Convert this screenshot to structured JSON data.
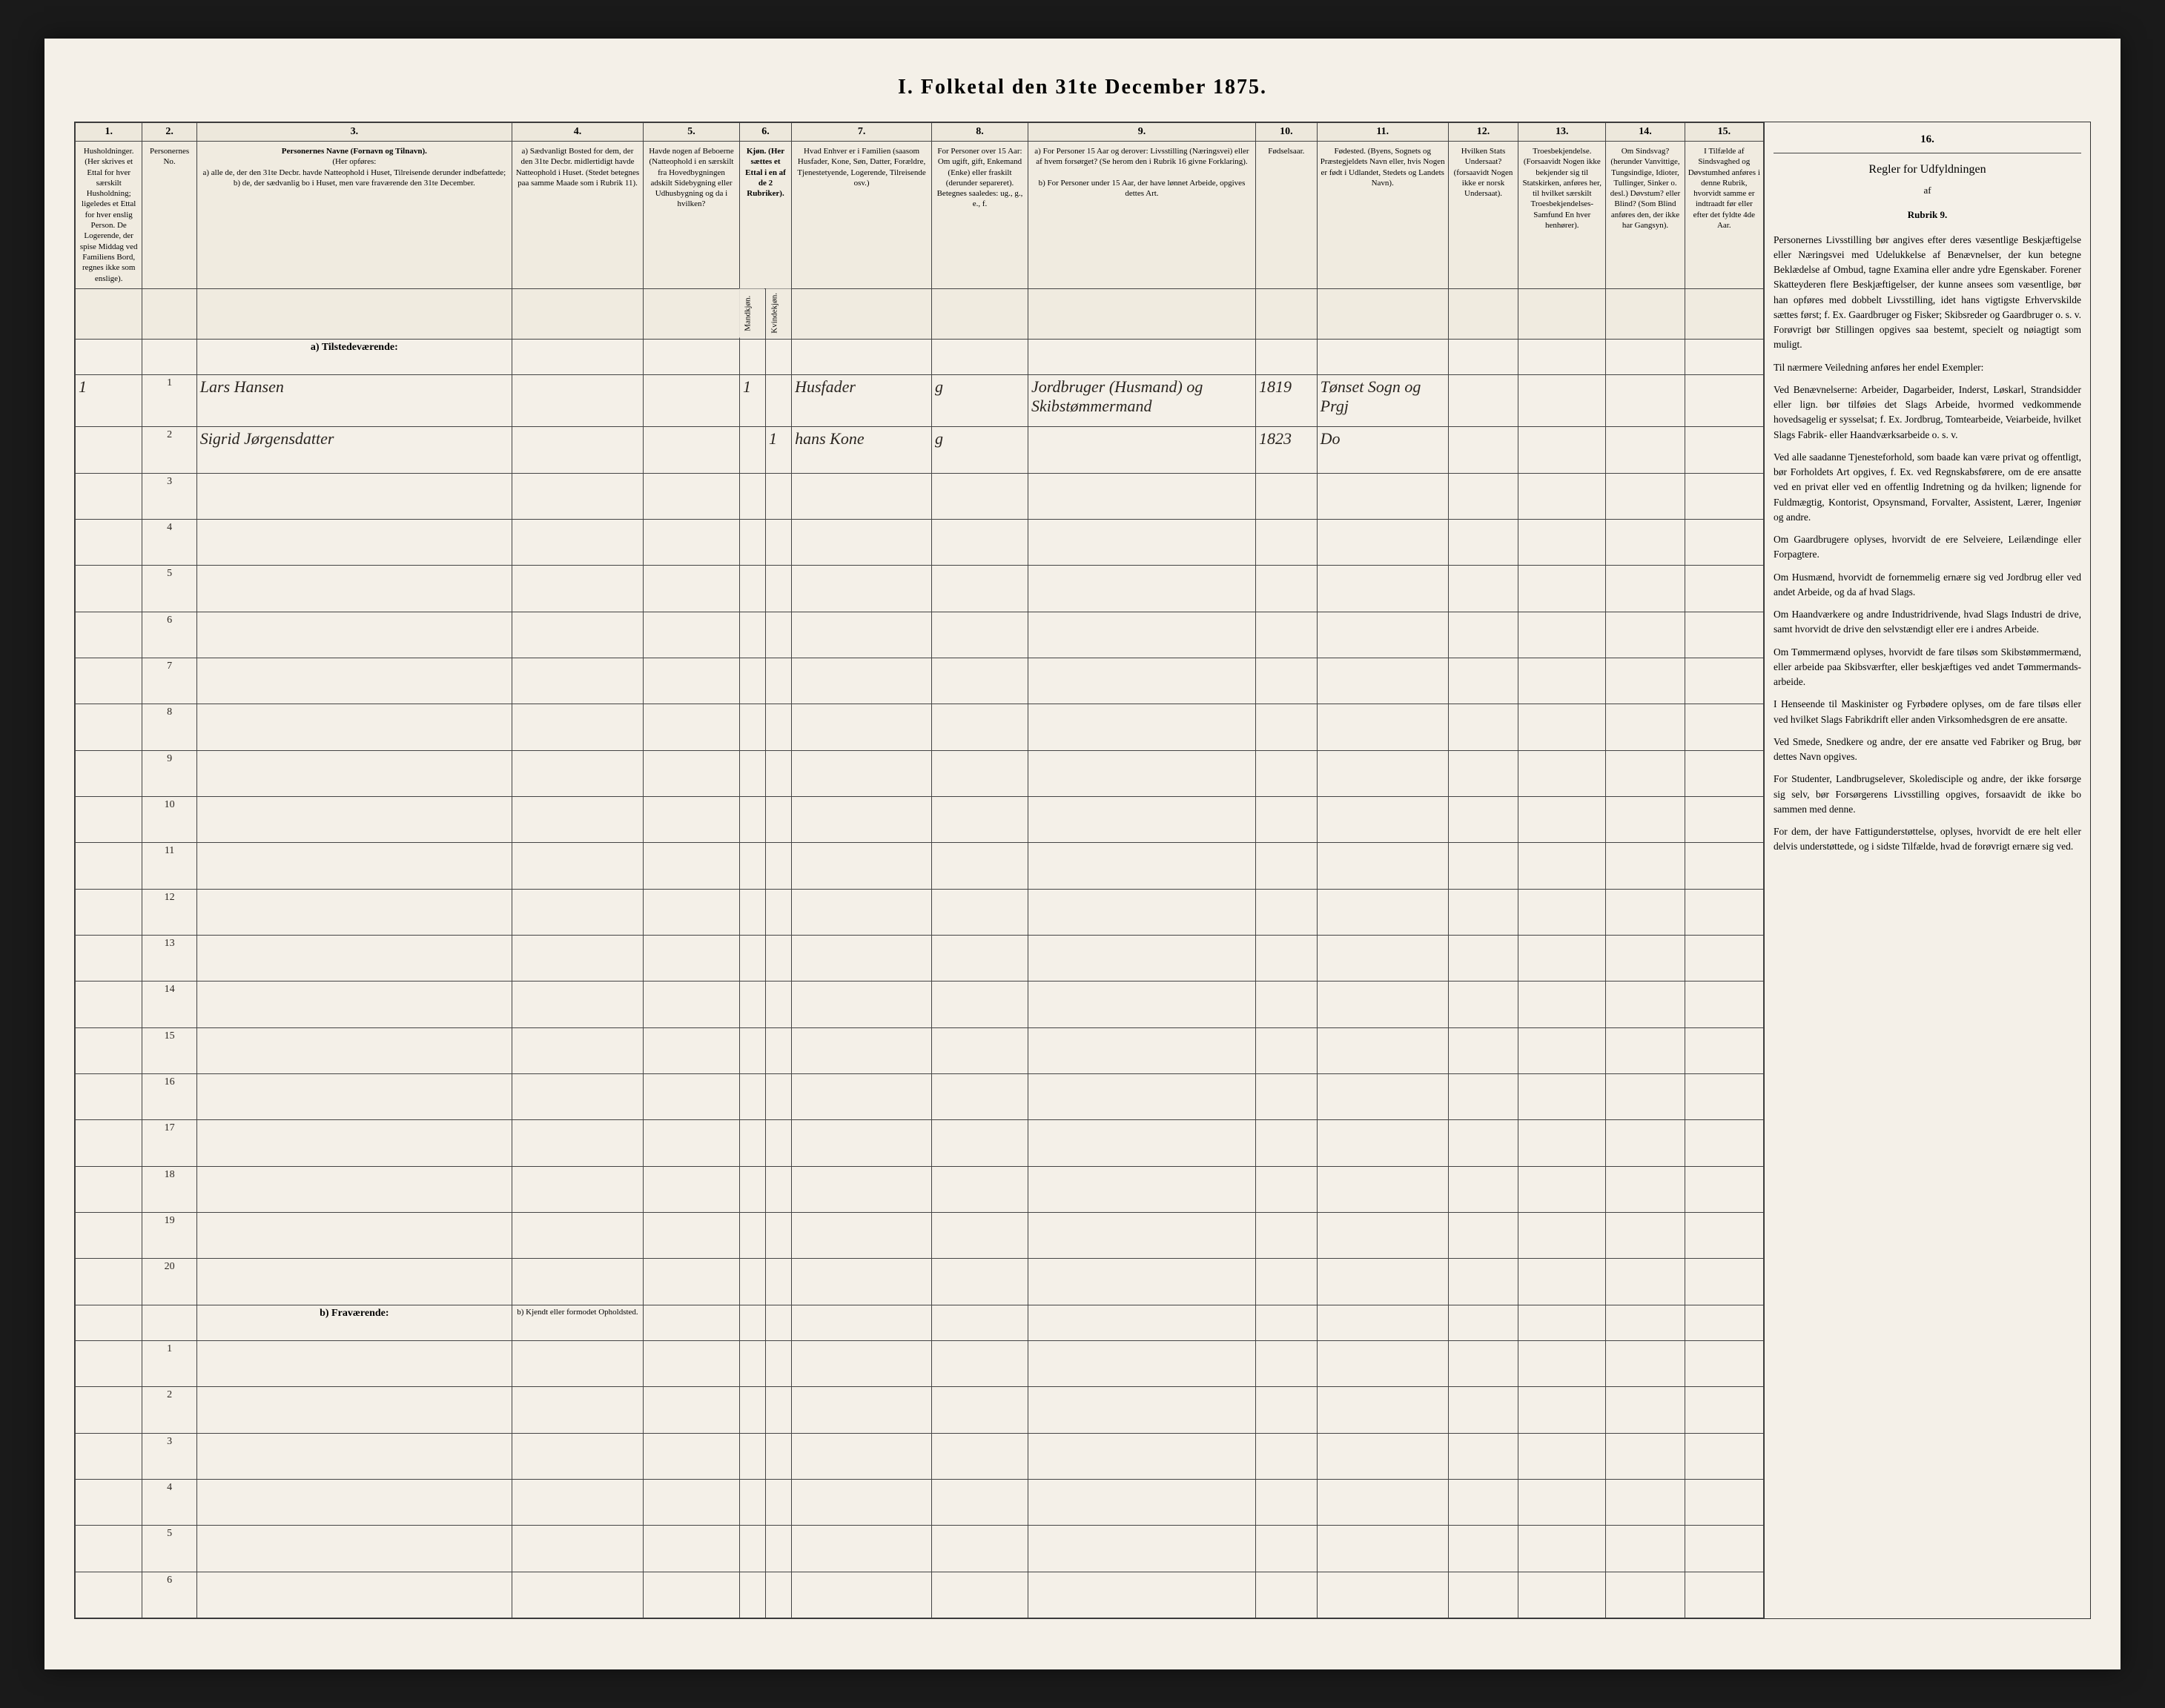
{
  "title": "I.  Folketal den 31te December 1875.",
  "colnums": [
    "1.",
    "2.",
    "3.",
    "4.",
    "5.",
    "6.",
    "7.",
    "8.",
    "9.",
    "10.",
    "11.",
    "12.",
    "13.",
    "14.",
    "15.",
    "16."
  ],
  "headers": {
    "c1": "Husholdninger. (Her skrives et Ettal for hver særskilt Husholdning; ligeledes et Ettal for hver enslig Person. De Logerende, der spise Middag ved Familiens Bord, regnes ikke som enslige).",
    "c2": "Personernes No.",
    "c3_title": "Personernes Navne (Fornavn og Tilnavn).",
    "c3_sub": "(Her opføres:",
    "c3_a": "a) alle de, der den 31te Decbr. havde Natteophold i Huset, Tilreisende derunder indbefattede;",
    "c3_b": "b) de, der sædvanlig bo i Huset, men vare fraværende den 31te December.",
    "c4": "a) Sædvanligt Bosted for dem, der den 31te Decbr. midlertidigt havde Natteophold i Huset. (Stedet betegnes paa samme Maade som i Rubrik 11).",
    "c5": "Havde nogen af Beboerne (Natteophold i en særskilt fra Hovedbygningen adskilt Sidebygning eller Udhusbygning og da i hvilken?",
    "c6": "Kjøn. (Her sættes et Ettal i en af de 2 Rubriker).",
    "c6a": "Mandkjøn.",
    "c6b": "Kvindekjøn.",
    "c7": "Hvad Enhver er i Familien (saasom Husfader, Kone, Søn, Datter, Forældre, Tjenestetyende, Logerende, Tilreisende osv.)",
    "c8": "For Personer over 15 Aar: Om ugift, gift, Enkemand (Enke) eller fraskilt (derunder separeret). Betegnes saaledes: ug., g., e., f.",
    "c9_a": "a) For Personer 15 Aar og derover: Livsstilling (Næringsvei) eller af hvem forsørget? (Se herom den i Rubrik 16 givne Forklaring).",
    "c9_b": "b) For Personer under 15 Aar, der have lønnet Arbeide, opgives dettes Art.",
    "c10": "Fødselsaar.",
    "c11": "Fødested. (Byens, Sognets og Præstegjeldets Navn eller, hvis Nogen er født i Udlandet, Stedets og Landets Navn).",
    "c12": "Hvilken Stats Undersaat? (forsaavidt Nogen ikke er norsk Undersaat).",
    "c13": "Troesbekjendelse. (Forsaavidt Nogen ikke bekjender sig til Statskirken, anføres her, til hvilket særskilt Troesbekjendelses-Samfund En hver henhører).",
    "c14": "Om Sindsvag? (herunder Vanvittige, Tungsindige, Idioter, Tullinger, Sinker o. desl.) Døvstum? eller Blind? (Som Blind anføres den, der ikke har Gangsyn).",
    "c15": "I Tilfælde af Sindsvaghed og Døvstumhed anføres i denne Rubrik, hvorvidt samme er indtraadt før eller efter det fyldte 4de Aar."
  },
  "section_a": "a) Tilstedeværende:",
  "section_b": "b) Fraværende:",
  "section_b_c4": "b) Kjendt eller formodet Opholdsted.",
  "rows": [
    {
      "num": "1",
      "hh": "1",
      "name": "Lars Hansen",
      "mk": "1",
      "kk": "",
      "fam": "Husfader",
      "civ": "g",
      "stil": "Jordbruger (Husmand) og Skibstømmermand",
      "aar": "1819",
      "fsted": "Tønset Sogn og Prgj"
    },
    {
      "num": "2",
      "hh": "",
      "name": "Sigrid Jørgensdatter",
      "mk": "",
      "kk": "1",
      "fam": "hans Kone",
      "civ": "g",
      "stil": "",
      "aar": "1823",
      "fsted": "Do"
    },
    {
      "num": "3"
    },
    {
      "num": "4"
    },
    {
      "num": "5"
    },
    {
      "num": "6"
    },
    {
      "num": "7"
    },
    {
      "num": "8"
    },
    {
      "num": "9"
    },
    {
      "num": "10"
    },
    {
      "num": "11"
    },
    {
      "num": "12"
    },
    {
      "num": "13"
    },
    {
      "num": "14"
    },
    {
      "num": "15"
    },
    {
      "num": "16"
    },
    {
      "num": "17"
    },
    {
      "num": "18"
    },
    {
      "num": "19"
    },
    {
      "num": "20"
    }
  ],
  "absent_rows": [
    "1",
    "2",
    "3",
    "4",
    "5",
    "6"
  ],
  "instr": {
    "title": "Regler for Udfyldningen",
    "sub1": "af",
    "sub2": "Rubrik 9.",
    "p1": "Personernes Livsstilling bør angives efter deres væsentlige Beskjæftigelse eller Næringsvei med Udelukkelse af Benævnelser, der kun betegne Beklædelse af Ombud, tagne Examina eller andre ydre Egenskaber. Forener Skatteyderen flere Beskjæftigelser, der kunne ansees som væsentlige, bør han opføres med dobbelt Livsstilling, idet hans vigtigste Erhvervskilde sættes først; f. Ex. Gaardbruger og Fisker; Skibsreder og Gaardbruger o. s. v. Forøvrigt bør Stillingen opgives saa bestemt, specielt og nøiagtigt som muligt.",
    "p2": "Til nærmere Veiledning anføres her endel Exempler:",
    "p3": "Ved Benævnelserne: Arbeider, Dagarbeider, Inderst, Løskarl, Strandsidder eller lign. bør tilføies det Slags Arbeide, hvormed vedkommende hovedsagelig er sysselsat; f. Ex. Jordbrug, Tomtearbeide, Veiarbeide, hvilket Slags Fabrik- eller Haandværksarbeide o. s. v.",
    "p4": "Ved alle saadanne Tjenesteforhold, som baade kan være privat og offentligt, bør Forholdets Art opgives, f. Ex. ved Regnskabsførere, om de ere ansatte ved en privat eller ved en offentlig Indretning og da hvilken; lignende for Fuldmægtig, Kontorist, Opsynsmand, Forvalter, Assistent, Lærer, Ingeniør og andre.",
    "p5": "Om Gaardbrugere oplyses, hvorvidt de ere Selveiere, Leilændinge eller Forpagtere.",
    "p6": "Om Husmænd, hvorvidt de fornemmelig ernære sig ved Jordbrug eller ved andet Arbeide, og da af hvad Slags.",
    "p7": "Om Haandværkere og andre Industridrivende, hvad Slags Industri de drive, samt hvorvidt de drive den selvstændigt eller ere i andres Arbeide.",
    "p8": "Om Tømmermænd oplyses, hvorvidt de fare tilsøs som Skibstømmermænd, eller arbeide paa Skibsværfter, eller beskjæftiges ved andet Tømmermands­arbeide.",
    "p9": "I Henseende til Maskinister og Fyrbødere oplyses, om de fare tilsøs eller ved hvilket Slags Fabrikdrift eller anden Virksomhedsgren de ere ansatte.",
    "p10": "Ved Smede, Snedkere og andre, der ere ansatte ved Fabriker og Brug, bør dettes Navn opgives.",
    "p11": "For Studenter, Landbrugselever, Skoledisciple og andre, der ikke forsørge sig selv, bør Forsørgerens Livsstilling opgives, forsaavidt de ikke bo sammen med denne.",
    "p12": "For dem, der have Fattigunderstøttelse, oplyses, hvorvidt de ere helt eller delvis understøttede, og i sidste Tilfælde, hvad de forøvrigt ernære sig ved."
  },
  "colors": {
    "paper": "#f4f0e8",
    "ink": "#2a2520",
    "rule": "#444444",
    "bg": "#1a1a1a"
  }
}
